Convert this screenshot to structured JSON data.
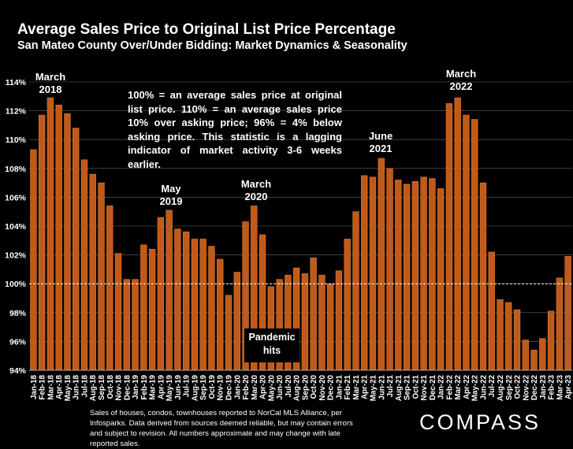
{
  "header": {
    "title": "Average Sales Price to Original List Price Percentage",
    "subtitle": "San Mateo County Over/Under Bidding: Market Dynamics & Seasonality"
  },
  "callout": "100% = an average sales price at original list price. 110% = an average sales price 10% over asking price; 96% = 4% below asking price. This statistic is a lagging indicator of market activity 3-6 weeks earlier.",
  "annotations": {
    "march_2018_l1": "March",
    "march_2018_l2": "2018",
    "may_2019_l1": "May",
    "may_2019_l2": "2019",
    "march_2020_l1": "March",
    "march_2020_l2": "2020",
    "june_2021_l1": "June",
    "june_2021_l2": "2021",
    "march_2022_l1": "March",
    "march_2022_l2": "2022",
    "pandemic_l1": "Pandemic",
    "pandemic_l2": "hits"
  },
  "footer": "Sales of houses, condos, townhouses reported to NorCal MLS Alliance, per Infosparks. Data derived from sources deemed reliable, but may contain errors and subject to revision. All numbers approximate and may change with late reported sales.",
  "logo": "COMPASS",
  "colors": {
    "bar": "#c05a1a",
    "bar_edge": "#e07a30",
    "gridline": "#666666"
  },
  "chart_data": {
    "type": "bar",
    "title": "Average Sales Price to Original List Price Percentage",
    "xlabel": "",
    "ylabel": "",
    "ylim": [
      94,
      114
    ],
    "yticks": [
      94,
      96,
      98,
      100,
      102,
      104,
      106,
      108,
      110,
      112,
      114
    ],
    "ytick_labels": [
      "94%",
      "96%",
      "98%",
      "100%",
      "102%",
      "104%",
      "106%",
      "108%",
      "110%",
      "112%",
      "114%"
    ],
    "reference_line": 100,
    "categories": [
      "Jan-18",
      "Feb-18",
      "Mar-18",
      "Apr-18",
      "May-18",
      "Jun-18",
      "Jul-18",
      "Aug-18",
      "Sep-18",
      "Oct-18",
      "Nov-18",
      "Dec-18",
      "Jan-19",
      "Feb-19",
      "Mar-19",
      "Apr-19",
      "May-19",
      "Jun-19",
      "Jul-19",
      "Aug-19",
      "Sep-19",
      "Oct-19",
      "Nov-19",
      "Dec-19",
      "Jan-20",
      "Feb-20",
      "Mar-20",
      "Apr-20",
      "May-20",
      "Jun-20",
      "Jul-20",
      "Aug-20",
      "Sep-20",
      "Oct-20",
      "Nov-20",
      "Dec-20",
      "Jan-21",
      "Feb-21",
      "Mar-21",
      "Apr-21",
      "May-21",
      "Jun-21",
      "Jul-21",
      "Aug-21",
      "Sep-21",
      "Oct-21",
      "Nov-21",
      "Dec-21",
      "Jan-22",
      "Feb-22",
      "Mar-22",
      "Apr-22",
      "May-22",
      "Jun-22",
      "Jul-22",
      "Aug-22",
      "Sep-22",
      "Oct-22",
      "Nov-22",
      "Dec-22",
      "Jan-23",
      "Feb-23",
      "Mar-23",
      "Apr-23"
    ],
    "values": [
      109.3,
      111.7,
      112.9,
      112.4,
      111.8,
      110.8,
      108.6,
      107.6,
      107.0,
      105.4,
      102.1,
      100.3,
      100.3,
      102.7,
      102.4,
      104.6,
      105.1,
      103.8,
      103.6,
      103.1,
      103.1,
      102.6,
      101.7,
      99.2,
      100.8,
      104.3,
      105.4,
      103.4,
      99.8,
      100.3,
      100.6,
      101.1,
      100.7,
      101.8,
      100.6,
      100.0,
      100.9,
      103.1,
      105.0,
      107.5,
      107.4,
      108.7,
      108.0,
      107.2,
      106.9,
      107.1,
      107.4,
      107.3,
      106.6,
      112.5,
      112.9,
      111.7,
      111.4,
      107.0,
      102.2,
      98.9,
      98.7,
      98.2,
      96.1,
      95.4,
      96.2,
      98.1,
      100.4,
      101.9
    ]
  }
}
